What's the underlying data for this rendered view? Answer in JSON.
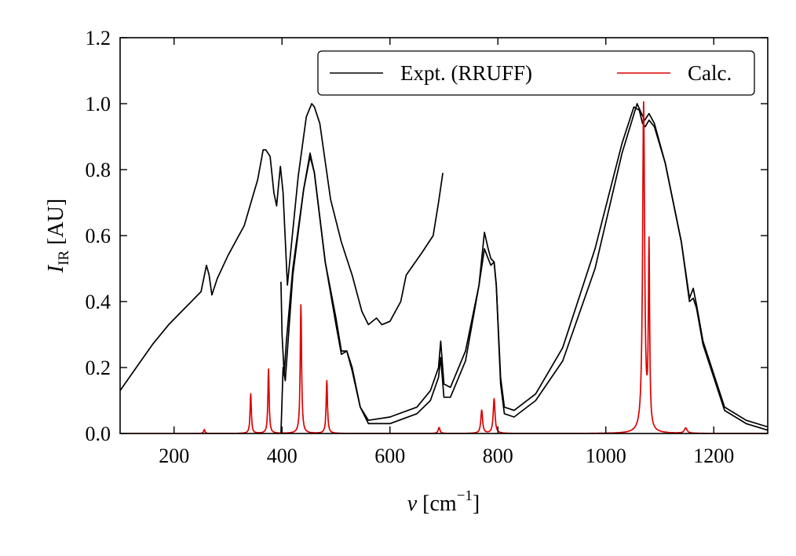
{
  "chart_data": {
    "type": "line",
    "xlabel": {
      "symbol": "v",
      "unit_open": " [cm",
      "unit_exp": "−1",
      "unit_close": "]"
    },
    "ylabel": {
      "symbol": "I",
      "sub": "IR",
      "unit": " [AU]"
    },
    "xlim": [
      100,
      1300
    ],
    "ylim": [
      0.0,
      1.2
    ],
    "xticks": [
      200,
      400,
      600,
      800,
      1000,
      1200
    ],
    "xtick_labels": [
      "200",
      "400",
      "600",
      "800",
      "1000",
      "1200"
    ],
    "yticks": [
      0.0,
      0.2,
      0.4,
      0.6,
      0.8,
      1.0,
      1.2
    ],
    "ytick_labels": [
      "0.0",
      "0.2",
      "0.4",
      "0.6",
      "0.8",
      "1.0",
      "1.2"
    ],
    "legend": {
      "placement": "top-right",
      "entries": [
        {
          "label": "Expt. (RRUFF)",
          "color": "#000000"
        },
        {
          "label": "Calc.",
          "color": "#dd0000"
        }
      ]
    },
    "series": [
      {
        "group": "expt",
        "color": "#000000",
        "x": [
          100,
          130,
          160,
          190,
          220,
          250,
          260,
          265,
          270,
          280,
          300,
          330,
          355,
          365,
          370,
          378,
          385,
          390,
          394,
          397,
          402,
          410,
          430,
          445,
          455,
          460,
          470,
          490,
          510,
          530,
          548,
          560,
          575,
          585,
          600,
          620,
          630,
          660,
          680,
          690,
          698
        ],
        "y": [
          0.13,
          0.2,
          0.27,
          0.33,
          0.38,
          0.43,
          0.51,
          0.48,
          0.42,
          0.47,
          0.54,
          0.63,
          0.77,
          0.86,
          0.86,
          0.84,
          0.73,
          0.69,
          0.76,
          0.81,
          0.73,
          0.45,
          0.78,
          0.96,
          1.0,
          0.99,
          0.94,
          0.71,
          0.58,
          0.48,
          0.37,
          0.33,
          0.35,
          0.33,
          0.34,
          0.4,
          0.48,
          0.55,
          0.6,
          0.7,
          0.79
        ]
      },
      {
        "group": "expt",
        "color": "#000000",
        "x": [
          398,
          402,
          406,
          420,
          440,
          452,
          460,
          480,
          500,
          510,
          520,
          530,
          545,
          560,
          600,
          650,
          675,
          690,
          694,
          700,
          712,
          740,
          765,
          775,
          782,
          787,
          793,
          797,
          805,
          812,
          830,
          870,
          920,
          980,
          1030,
          1052,
          1062,
          1068,
          1073,
          1080,
          1090,
          1110,
          1140,
          1155,
          1162,
          1168,
          1180,
          1220,
          1260,
          1300
        ],
        "y": [
          0.0,
          0.2,
          0.16,
          0.48,
          0.74,
          0.84,
          0.79,
          0.52,
          0.35,
          0.25,
          0.25,
          0.2,
          0.08,
          0.04,
          0.05,
          0.08,
          0.13,
          0.2,
          0.28,
          0.15,
          0.14,
          0.25,
          0.45,
          0.56,
          0.53,
          0.51,
          0.52,
          0.45,
          0.17,
          0.08,
          0.07,
          0.12,
          0.26,
          0.56,
          0.88,
          0.99,
          0.98,
          0.94,
          0.93,
          0.95,
          0.93,
          0.82,
          0.58,
          0.41,
          0.44,
          0.39,
          0.28,
          0.08,
          0.04,
          0.02
        ]
      },
      {
        "group": "expt",
        "color": "#000000",
        "x": [
          398,
          400,
          404,
          408,
          420,
          440,
          452,
          460,
          480,
          500,
          510,
          520,
          530,
          545,
          560,
          600,
          650,
          675,
          690,
          694,
          700,
          712,
          740,
          765,
          775,
          782,
          787,
          793,
          797,
          805,
          812,
          830,
          870,
          920,
          980,
          1030,
          1058,
          1066,
          1072,
          1080,
          1090,
          1110,
          1140,
          1155,
          1162,
          1168,
          1180,
          1220,
          1260,
          1300
        ],
        "y": [
          0.46,
          0.3,
          0.18,
          0.28,
          0.5,
          0.74,
          0.85,
          0.79,
          0.52,
          0.33,
          0.24,
          0.25,
          0.19,
          0.08,
          0.03,
          0.03,
          0.06,
          0.1,
          0.17,
          0.23,
          0.11,
          0.11,
          0.22,
          0.45,
          0.61,
          0.56,
          0.53,
          0.52,
          0.45,
          0.15,
          0.06,
          0.05,
          0.1,
          0.22,
          0.5,
          0.85,
          1.0,
          0.97,
          0.95,
          0.97,
          0.94,
          0.82,
          0.58,
          0.4,
          0.41,
          0.38,
          0.27,
          0.07,
          0.03,
          0.01
        ]
      },
      {
        "group": "calc",
        "color": "#dd0000",
        "peaks": [
          {
            "x": 256,
            "y": 0.012,
            "w": 1.5
          },
          {
            "x": 342,
            "y": 0.12,
            "w": 1.4
          },
          {
            "x": 375,
            "y": 0.195,
            "w": 1.4
          },
          {
            "x": 435,
            "y": 0.39,
            "w": 1.5
          },
          {
            "x": 483,
            "y": 0.16,
            "w": 1.5
          },
          {
            "x": 691,
            "y": 0.018,
            "w": 2.0
          },
          {
            "x": 770,
            "y": 0.07,
            "w": 2.0
          },
          {
            "x": 793,
            "y": 0.105,
            "w": 2.0
          },
          {
            "x": 1070,
            "y": 0.995,
            "w": 2.2
          },
          {
            "x": 1080,
            "y": 0.55,
            "w": 1.4
          },
          {
            "x": 1148,
            "y": 0.016,
            "w": 3.0
          }
        ]
      }
    ]
  }
}
